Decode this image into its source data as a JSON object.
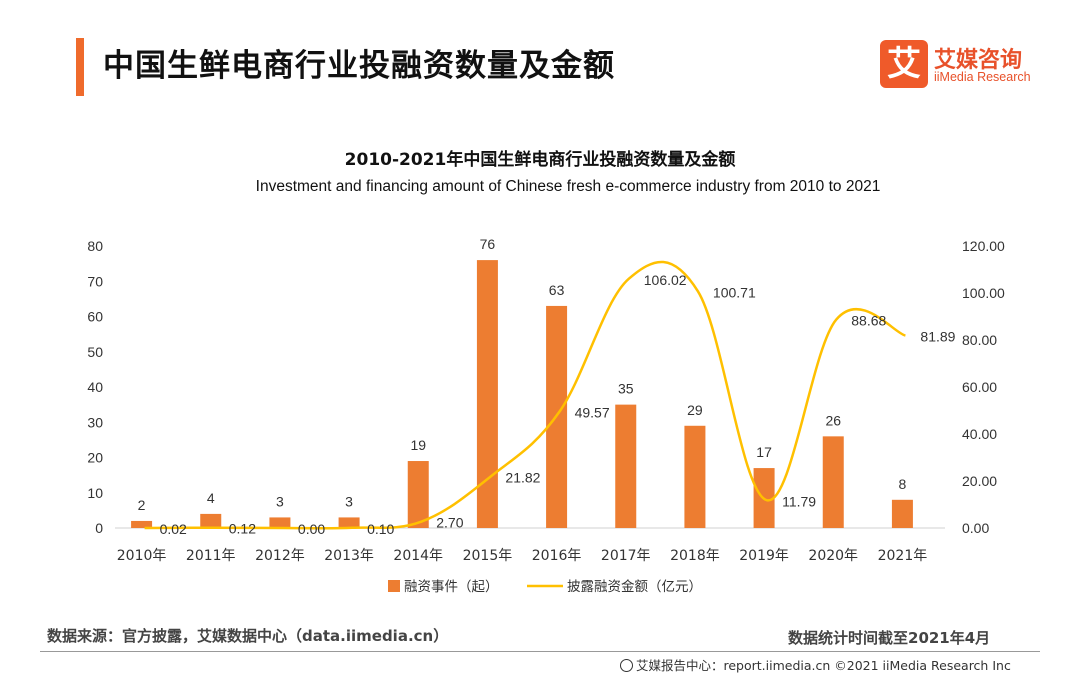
{
  "header": {
    "title": "中国生鲜电商行业投融资数量及金额",
    "logo_mark": "艾",
    "logo_cn": "艾媒咨询",
    "logo_en": "iiMedia Research"
  },
  "chart_data": {
    "type": "bar+line",
    "title": "2010-2021年中国生鲜电商行业投融资数量及金额",
    "subtitle": "Investment and financing amount of Chinese fresh e-commerce industry from 2010 to 2021",
    "categories": [
      "2010年",
      "2011年",
      "2012年",
      "2013年",
      "2014年",
      "2015年",
      "2016年",
      "2017年",
      "2018年",
      "2019年",
      "2020年",
      "2021年"
    ],
    "series": [
      {
        "name": "融资事件（起）",
        "type": "bar",
        "axis": "left",
        "color": "#ed7d31",
        "values": [
          2,
          4,
          3,
          3,
          19,
          76,
          63,
          35,
          29,
          17,
          26,
          8
        ],
        "labels": [
          "2",
          "4",
          "3",
          "3",
          "19",
          "76",
          "63",
          "35",
          "29",
          "17",
          "26",
          "8"
        ]
      },
      {
        "name": "披露融资金额（亿元）",
        "type": "line",
        "axis": "right",
        "color": "#ffc000",
        "values": [
          0.02,
          0.12,
          0.0,
          0.1,
          2.7,
          21.82,
          49.57,
          106.02,
          100.71,
          11.79,
          88.68,
          81.89
        ],
        "labels": [
          "0.02",
          "0.12",
          "0.00",
          "0.10",
          "2.70",
          "21.82",
          "49.57",
          "106.02",
          "100.71",
          "11.79",
          "88.68",
          "81.89"
        ]
      }
    ],
    "y_left": {
      "lim": [
        0,
        80
      ],
      "ticks": [
        "0",
        "10",
        "20",
        "30",
        "40",
        "50",
        "60",
        "70",
        "80"
      ]
    },
    "y_right": {
      "lim": [
        0,
        120
      ],
      "ticks": [
        "0.00",
        "20.00",
        "40.00",
        "60.00",
        "80.00",
        "100.00",
        "120.00"
      ]
    },
    "legend_position": "bottom-center",
    "grid": false
  },
  "footer": {
    "source": "数据来源：官方披露，艾媒数据中心（data.iimedia.cn）",
    "date": "数据统计时间截至2021年4月",
    "credit": "艾媒报告中心：report.iimedia.cn  ©2021  iiMedia Research  Inc"
  }
}
